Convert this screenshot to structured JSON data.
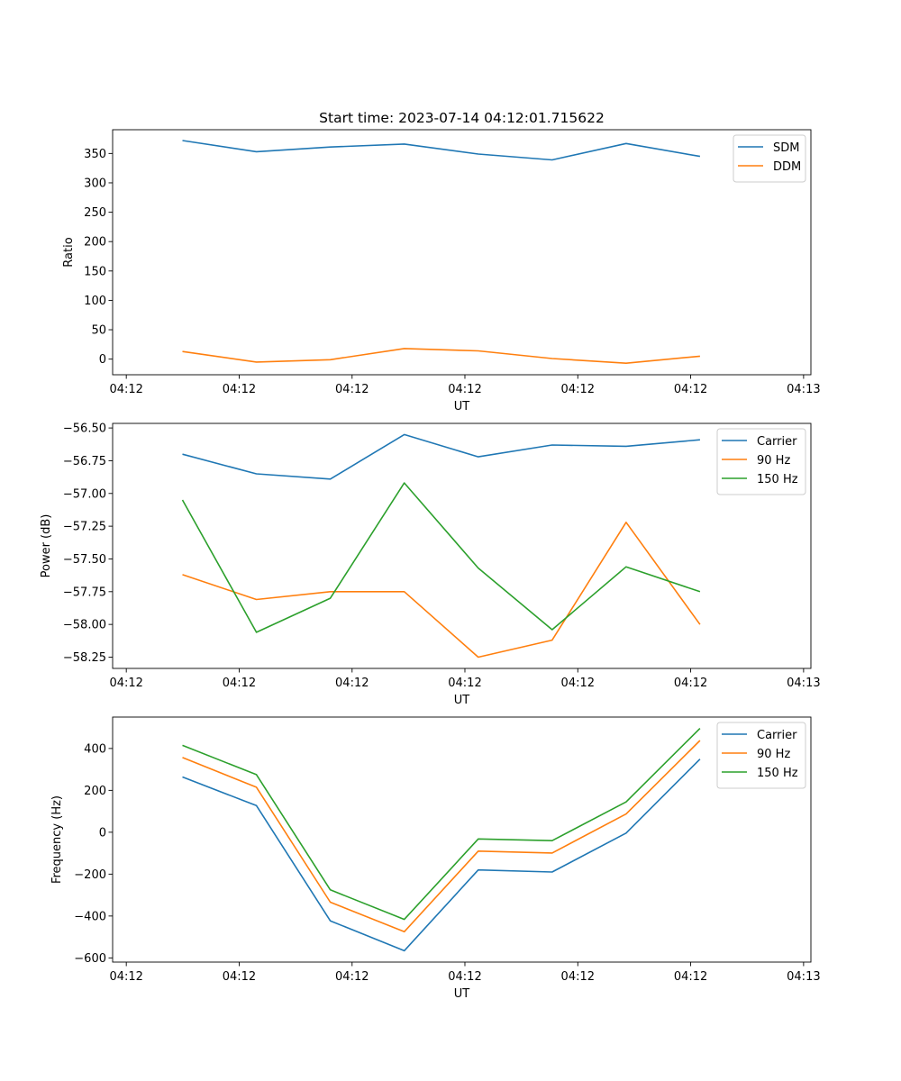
{
  "figure_title": "Start time: 2023-07-14 04:12:01.715622",
  "chart_data": [
    {
      "type": "line",
      "ylabel": "Ratio",
      "xlabel": "UT",
      "ylim": [
        -26.6,
        390.4
      ],
      "yticks": [
        0,
        50,
        100,
        150,
        200,
        250,
        300,
        350
      ],
      "xlim": [
        -0.185,
        9.26
      ],
      "xticks": [
        0,
        1.527,
        3.054,
        4.58,
        6.107,
        7.634,
        9.161
      ],
      "xticklabels": [
        "04:12",
        "04:12",
        "04:12",
        "04:12",
        "04:12",
        "04:12",
        "04:13"
      ],
      "x": [
        0.76,
        1.76,
        2.76,
        3.76,
        4.76,
        5.76,
        6.76,
        7.76
      ],
      "legend_loc": "upper right",
      "series": [
        {
          "name": "SDM",
          "color": "#1f77b4",
          "values": [
            372,
            353,
            361,
            366,
            349,
            339,
            367,
            345
          ]
        },
        {
          "name": "DDM",
          "color": "#ff7f0e",
          "values": [
            13,
            -5,
            -1,
            18,
            14,
            1,
            -7,
            5
          ]
        }
      ]
    },
    {
      "type": "line",
      "ylabel": "Power (dB)",
      "xlabel": "UT",
      "ylim": [
        -58.336,
        -56.465
      ],
      "yticks": [
        -58.25,
        -58.0,
        -57.75,
        -57.5,
        -57.25,
        -57.0,
        -56.75,
        -56.5
      ],
      "yticklabels": [
        "−58.25",
        "−58.00",
        "−57.75",
        "−57.50",
        "−57.25",
        "−57.00",
        "−56.75",
        "−56.50"
      ],
      "xlim": [
        -0.185,
        9.26
      ],
      "xticks": [
        0,
        1.527,
        3.054,
        4.58,
        6.107,
        7.634,
        9.161
      ],
      "xticklabels": [
        "04:12",
        "04:12",
        "04:12",
        "04:12",
        "04:12",
        "04:12",
        "04:13"
      ],
      "x": [
        0.76,
        1.76,
        2.76,
        3.76,
        4.76,
        5.76,
        6.76,
        7.76
      ],
      "legend_loc": "upper right",
      "series": [
        {
          "name": "Carrier",
          "color": "#1f77b4",
          "values": [
            -56.7,
            -56.85,
            -56.89,
            -56.55,
            -56.72,
            -56.63,
            -56.64,
            -56.59
          ]
        },
        {
          "name": "90 Hz",
          "color": "#ff7f0e",
          "values": [
            -57.62,
            -57.81,
            -57.75,
            -57.75,
            -58.25,
            -58.12,
            -57.22,
            -58.0
          ]
        },
        {
          "name": "150 Hz",
          "color": "#2ca02c",
          "values": [
            -57.05,
            -58.06,
            -57.8,
            -56.92,
            -57.57,
            -58.04,
            -57.56,
            -57.75
          ]
        }
      ]
    },
    {
      "type": "line",
      "ylabel": "Frequency (Hz)",
      "xlabel": "UT",
      "ylim": [
        -620,
        550
      ],
      "yticks": [
        -600,
        -400,
        -200,
        0,
        200,
        400
      ],
      "yticklabels": [
        "−600",
        "−400",
        "−200",
        "0",
        "200",
        "400"
      ],
      "xlim": [
        -0.185,
        9.26
      ],
      "xticks": [
        0,
        1.527,
        3.054,
        4.58,
        6.107,
        7.634,
        9.161
      ],
      "xticklabels": [
        "04:12",
        "04:12",
        "04:12",
        "04:12",
        "04:12",
        "04:12",
        "04:13"
      ],
      "x": [
        0.76,
        1.76,
        2.76,
        3.76,
        4.76,
        5.76,
        6.76,
        7.76
      ],
      "legend_loc": "upper right",
      "series": [
        {
          "name": "Carrier",
          "color": "#1f77b4",
          "values": [
            264,
            127,
            -423,
            -566,
            -180,
            -190,
            -4,
            349
          ]
        },
        {
          "name": "90 Hz",
          "color": "#ff7f0e",
          "values": [
            357,
            215,
            -334,
            -475,
            -90,
            -99,
            87,
            438
          ]
        },
        {
          "name": "150 Hz",
          "color": "#2ca02c",
          "values": [
            415,
            275,
            -275,
            -416,
            -32,
            -40,
            145,
            496
          ]
        }
      ]
    }
  ]
}
